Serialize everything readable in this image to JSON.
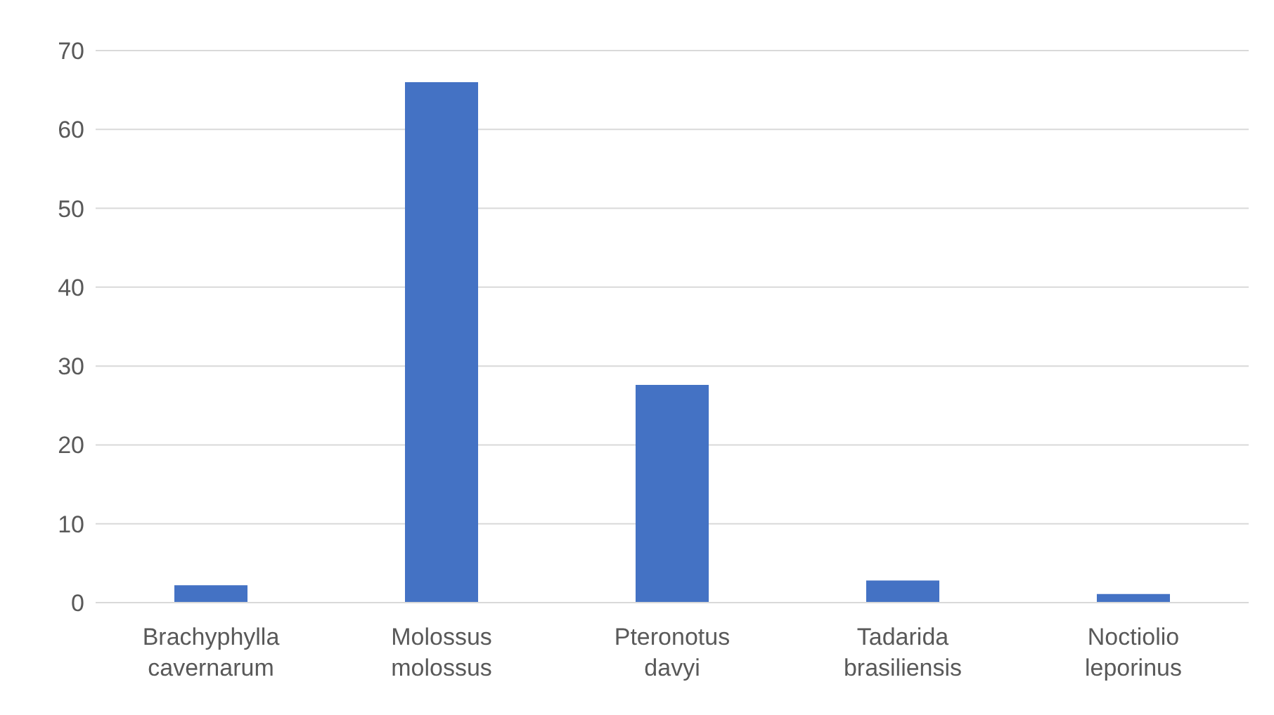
{
  "chart_data": {
    "type": "bar",
    "categories": [
      "Brachyphylla cavernarum",
      "Molossus molossus",
      "Pteronotus davyi",
      "Tadarida brasiliensis",
      "Noctiolio leporinus"
    ],
    "values": [
      2.2,
      66,
      27.6,
      2.8,
      1.1
    ],
    "color": "#4472c4",
    "ylim": [
      0,
      70
    ],
    "yticks": [
      0,
      10,
      20,
      30,
      40,
      50,
      60,
      70
    ],
    "grid": "y",
    "legend": false
  }
}
